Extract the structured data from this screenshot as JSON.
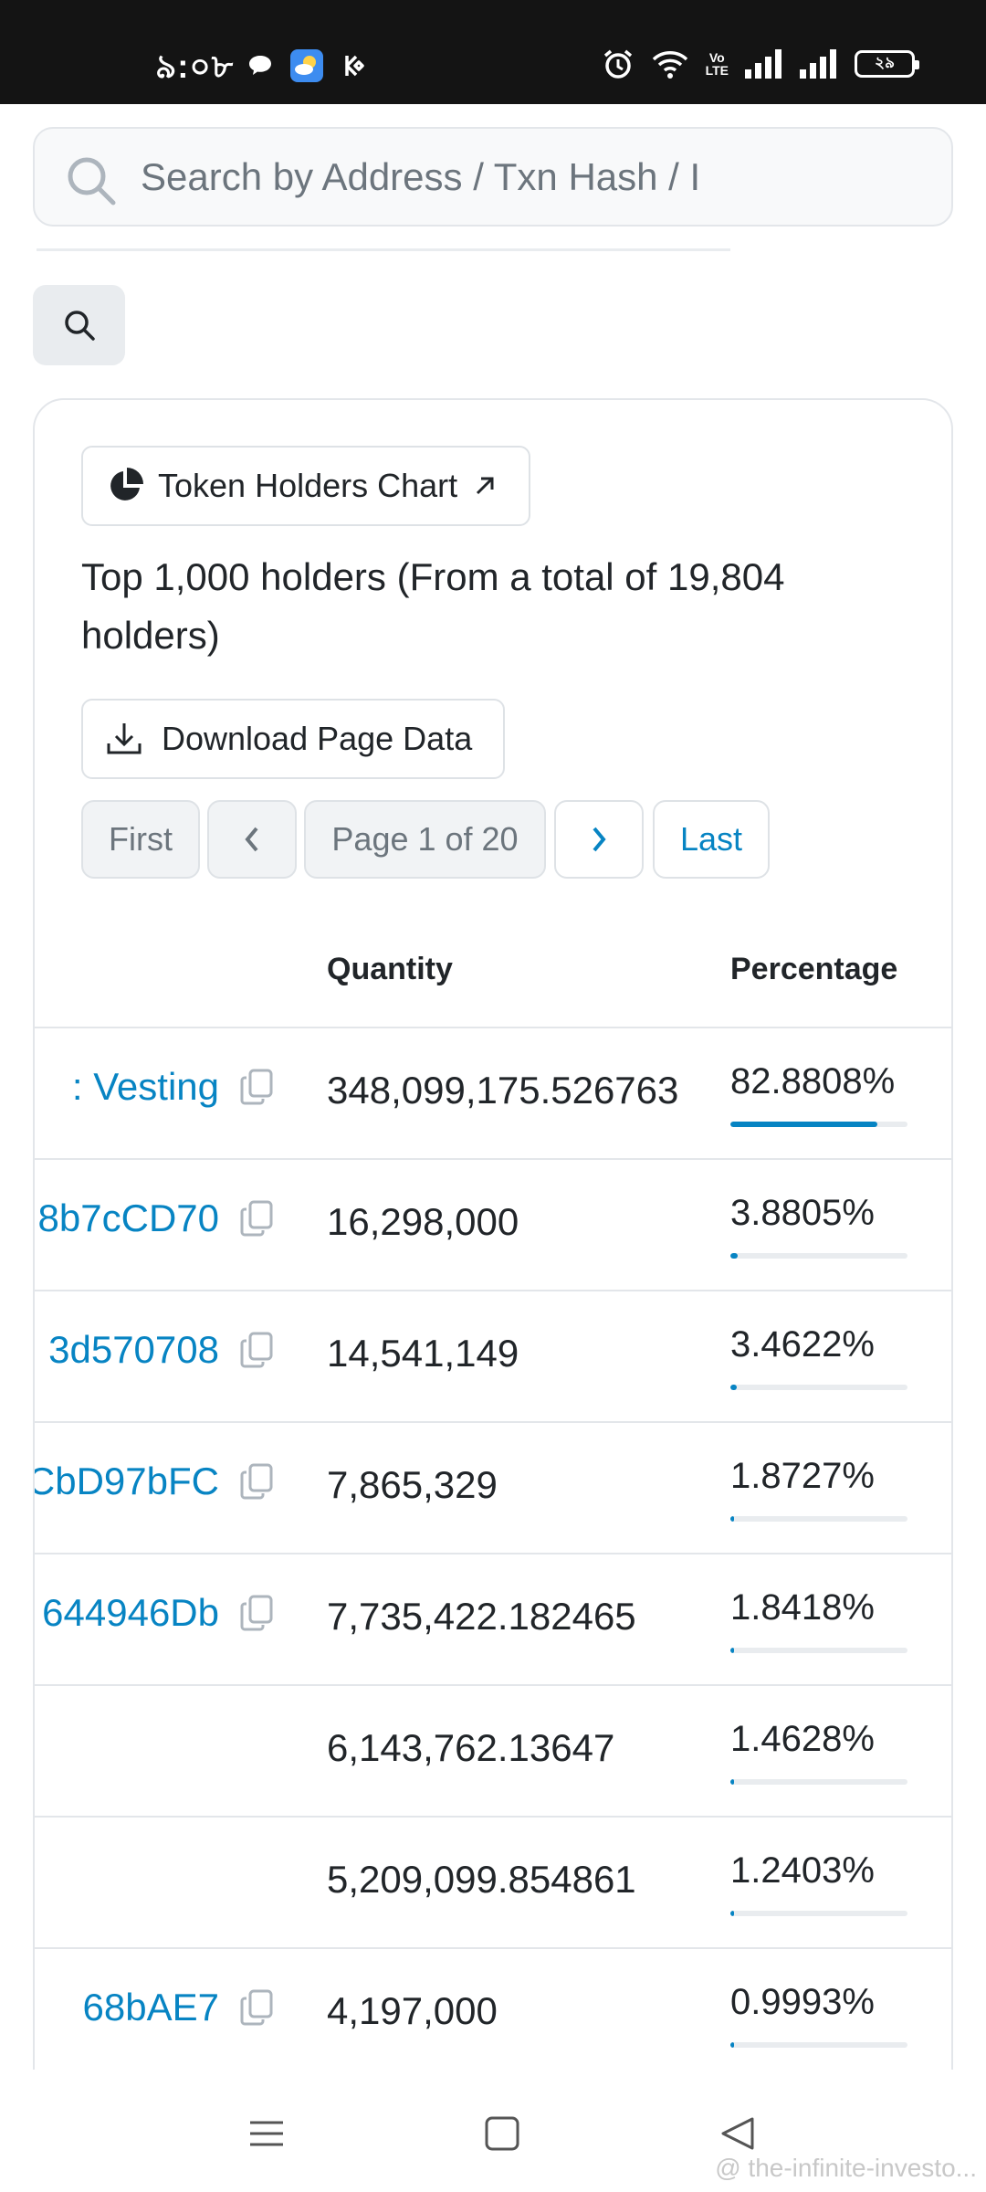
{
  "status_bar": {
    "time": "৯:০৮",
    "battery": "২৯",
    "icons": [
      "chat-bubble-icon",
      "weather-icon",
      "kucoin-icon",
      "alarm-icon",
      "wifi-icon",
      "volte-icon",
      "signal-icon",
      "signal-icon",
      "battery-icon"
    ],
    "volte_label": "Vo LTE"
  },
  "search": {
    "placeholder": "Search by Address / Txn Hash / I"
  },
  "card": {
    "chart_button_label": "Token Holders Chart",
    "holders_summary": "Top 1,000 holders (From a total of 19,804 holders)",
    "download_label": "Download Page Data"
  },
  "pagination": {
    "first": "First",
    "prev_icon": "chevron-left-icon",
    "page_label": "Page 1 of 20",
    "next_icon": "chevron-right-icon",
    "last": "Last"
  },
  "table": {
    "headers": {
      "quantity": "Quantity",
      "percentage": "Percentage"
    },
    "rows": [
      {
        "address": ": Vesting",
        "quantity": "348,099,175.526763",
        "percentage": "82.8808%",
        "pct_value": 82.8808
      },
      {
        "address": "8b7cCD70",
        "quantity": "16,298,000",
        "percentage": "3.8805%",
        "pct_value": 3.8805
      },
      {
        "address": "3d570708",
        "quantity": "14,541,149",
        "percentage": "3.4622%",
        "pct_value": 3.4622
      },
      {
        "address": "CbD97bFC",
        "quantity": "7,865,329",
        "percentage": "1.8727%",
        "pct_value": 1.8727
      },
      {
        "address": "644946Db",
        "quantity": "7,735,422.182465",
        "percentage": "1.8418%",
        "pct_value": 1.8418
      },
      {
        "address": "",
        "quantity": "6,143,762.13647",
        "percentage": "1.4628%",
        "pct_value": 1.4628
      },
      {
        "address": "",
        "quantity": "5,209,099.854861",
        "percentage": "1.2403%",
        "pct_value": 1.2403
      },
      {
        "address": "68bAE7",
        "quantity": "4,197,000",
        "percentage": "0.9993%",
        "pct_value": 0.9993
      }
    ]
  },
  "nav_bar": {
    "icons": [
      "menu-icon",
      "home-square-icon",
      "back-triangle-icon"
    ]
  },
  "watermark": "@ the-infinite-investo..."
}
